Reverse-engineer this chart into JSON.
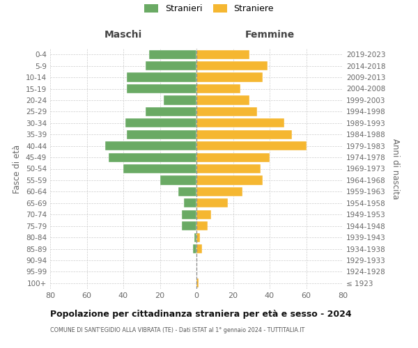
{
  "age_groups": [
    "100+",
    "95-99",
    "90-94",
    "85-89",
    "80-84",
    "75-79",
    "70-74",
    "65-69",
    "60-64",
    "55-59",
    "50-54",
    "45-49",
    "40-44",
    "35-39",
    "30-34",
    "25-29",
    "20-24",
    "15-19",
    "10-14",
    "5-9",
    "0-4"
  ],
  "birth_years": [
    "≤ 1923",
    "1924-1928",
    "1929-1933",
    "1934-1938",
    "1939-1943",
    "1944-1948",
    "1949-1953",
    "1954-1958",
    "1959-1963",
    "1964-1968",
    "1969-1973",
    "1974-1978",
    "1979-1983",
    "1984-1988",
    "1989-1993",
    "1994-1998",
    "1999-2003",
    "2004-2008",
    "2009-2013",
    "2014-2018",
    "2019-2023"
  ],
  "males": [
    0,
    0,
    0,
    2,
    1,
    8,
    8,
    7,
    10,
    20,
    40,
    48,
    50,
    38,
    39,
    28,
    18,
    38,
    38,
    28,
    26
  ],
  "females": [
    1,
    0,
    0,
    3,
    2,
    6,
    8,
    17,
    25,
    36,
    35,
    40,
    60,
    52,
    48,
    33,
    29,
    24,
    36,
    39,
    29
  ],
  "male_color": "#6aaa64",
  "female_color": "#f5b731",
  "grid_color": "#cccccc",
  "dashed_line_color": "#888888",
  "tick_color": "#666666",
  "xlim": 80,
  "title": "Popolazione per cittadinanza straniera per età e sesso - 2024",
  "subtitle": "COMUNE DI SANT'EGIDIO ALLA VIBRATA (TE) - Dati ISTAT al 1° gennaio 2024 - TUTTITALIA.IT",
  "ylabel_left": "Fasce di età",
  "ylabel_right": "Anni di nascita",
  "label_maschi": "Maschi",
  "label_femmine": "Femmine",
  "legend_stranieri": "Stranieri",
  "legend_straniere": "Straniere"
}
